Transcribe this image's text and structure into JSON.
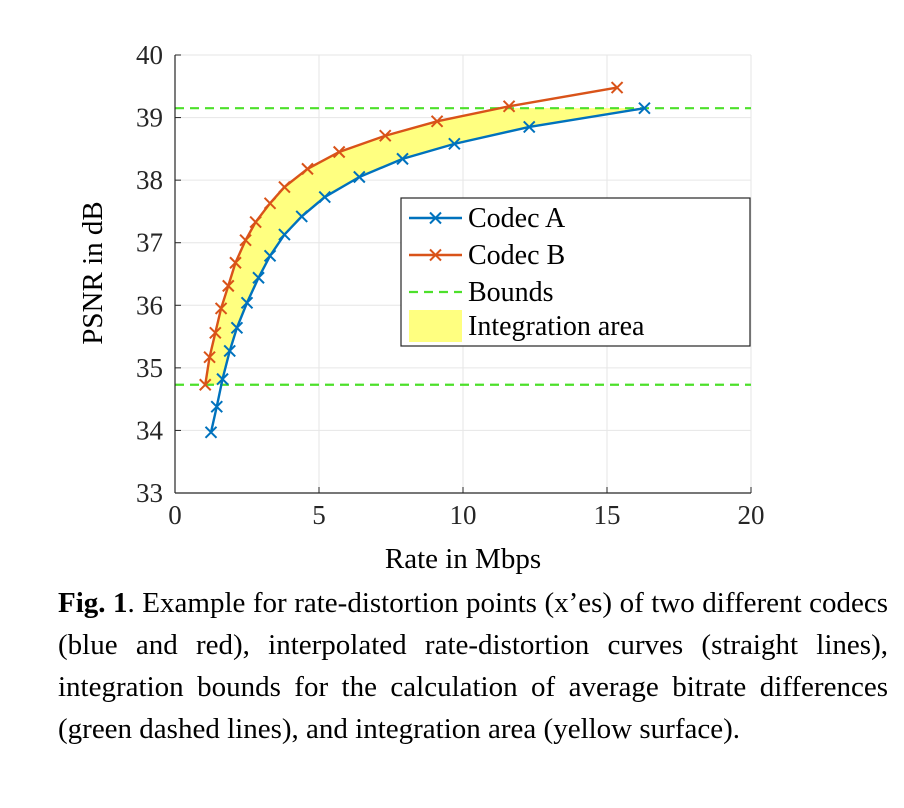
{
  "chart_data": {
    "type": "line",
    "xlabel": "Rate in Mbps",
    "ylabel": "PSNR in dB",
    "xlim": [
      0,
      20
    ],
    "ylim": [
      33,
      40
    ],
    "xticks": [
      "0",
      "5",
      "10",
      "15",
      "20"
    ],
    "yticks": [
      "33",
      "34",
      "35",
      "36",
      "37",
      "38",
      "39",
      "40"
    ],
    "grid": true,
    "legend_position": "center-right",
    "series": [
      {
        "name": "Codec A",
        "color": "#0072BD",
        "marker": "x",
        "x": [
          1.25,
          1.45,
          1.65,
          1.9,
          2.15,
          2.5,
          2.9,
          3.3,
          3.8,
          4.4,
          5.2,
          6.4,
          7.9,
          9.7,
          12.3,
          16.3
        ],
        "y": [
          33.97,
          34.38,
          34.82,
          35.27,
          35.64,
          36.04,
          36.44,
          36.79,
          37.13,
          37.42,
          37.73,
          38.05,
          38.34,
          38.58,
          38.85,
          39.15
        ]
      },
      {
        "name": "Codec B",
        "color": "#D95319",
        "marker": "x",
        "x": [
          1.05,
          1.2,
          1.4,
          1.6,
          1.85,
          2.1,
          2.45,
          2.8,
          3.3,
          3.8,
          4.6,
          5.7,
          7.3,
          9.1,
          11.6,
          15.35
        ],
        "y": [
          34.73,
          35.17,
          35.56,
          35.95,
          36.31,
          36.68,
          37.04,
          37.33,
          37.63,
          37.89,
          38.18,
          38.45,
          38.71,
          38.94,
          39.18,
          39.48
        ]
      },
      {
        "name": "Bounds",
        "color": "#4DE02B",
        "style": "dashed",
        "y_values": [
          34.73,
          39.15
        ]
      }
    ],
    "area": {
      "name": "Integration area",
      "color": "#FFFF80",
      "y_range": [
        34.73,
        39.15
      ]
    }
  },
  "caption": {
    "label": "Fig. 1",
    "text": ". Example for rate-distortion points (x’es) of two different codecs (blue and red), interpolated rate-distortion curves (straight lines), integration bounds for the calculation of average bitrate differences (green dashed lines), and integration area (yellow surface)."
  }
}
